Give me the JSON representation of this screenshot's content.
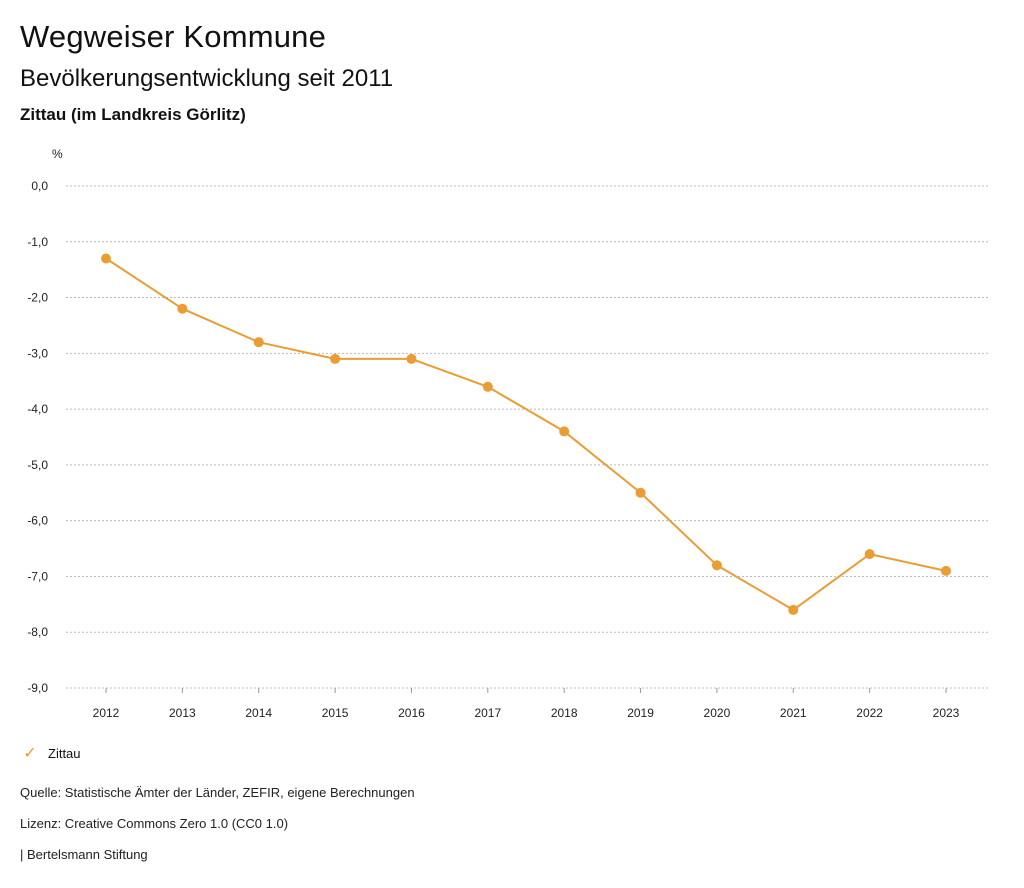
{
  "header": {
    "title": "Wegweiser Kommune",
    "subtitle": "Bevölkerungsentwicklung seit 2011",
    "region": "Zittau (im Landkreis Görlitz)"
  },
  "legend": {
    "icon": "check-icon",
    "label": "Zittau"
  },
  "footer": {
    "source": "Quelle: Statistische Ämter der Länder, ZEFIR, eigene Berechnungen",
    "license": "Lizenz: Creative Commons Zero 1.0 (CC0 1.0)",
    "brand": "| Bertelsmann Stiftung"
  },
  "colors": {
    "series": "#ea9c35",
    "grid": "#bbbbbb"
  },
  "chart_data": {
    "type": "line",
    "title": "Bevölkerungsentwicklung seit 2011",
    "ylabel": "%",
    "xlabel": "",
    "ylim": [
      -9.0,
      0.0
    ],
    "yticks": [
      0.0,
      -1.0,
      -2.0,
      -3.0,
      -4.0,
      -5.0,
      -6.0,
      -7.0,
      -8.0,
      -9.0
    ],
    "ytick_labels": [
      "0,0",
      "-1,0",
      "-2,0",
      "-3,0",
      "-4,0",
      "-5,0",
      "-6,0",
      "-7,0",
      "-8,0",
      "-9,0"
    ],
    "grid": true,
    "legend_position": "bottom-left",
    "categories": [
      "2012",
      "2013",
      "2014",
      "2015",
      "2016",
      "2017",
      "2018",
      "2019",
      "2020",
      "2021",
      "2022",
      "2023"
    ],
    "series": [
      {
        "name": "Zittau",
        "values": [
          -1.3,
          -2.2,
          -2.8,
          -3.1,
          -3.1,
          -3.6,
          -4.4,
          -5.5,
          -6.8,
          -7.6,
          -6.6,
          -6.9
        ]
      }
    ]
  }
}
